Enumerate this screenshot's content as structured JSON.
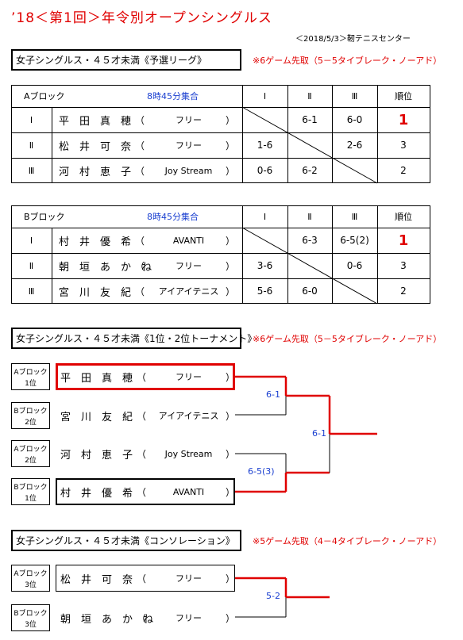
{
  "title": "’18＜第1回＞年令別オープンシングルス",
  "venue": "＜2018/5/3＞靭テニスセンター",
  "paren": [
    "（",
    "）"
  ],
  "league": {
    "heading": "女子シングルス・４５才未満《予選リーグ》",
    "note": "※6ゲーム先取（5－5タイブレーク・ノーアド）",
    "tables": [
      {
        "block": "Aブロック",
        "time": "8時45分集合",
        "columns": [
          "Ⅰ",
          "Ⅱ",
          "Ⅲ",
          "順位"
        ],
        "rows": [
          {
            "no": "Ⅰ",
            "name": "平　田　真　穂",
            "club": "フリー",
            "scores": [
              null,
              "6-1",
              "6-0"
            ],
            "rank": 1
          },
          {
            "no": "Ⅱ",
            "name": "松　井　可　奈",
            "club": "フリー",
            "scores": [
              "1-6",
              null,
              "2-6"
            ],
            "rank": 3
          },
          {
            "no": "Ⅲ",
            "name": "河　村　恵　子",
            "club": "Joy Stream",
            "scores": [
              "0-6",
              "6-2",
              null
            ],
            "rank": 2
          }
        ]
      },
      {
        "block": "Bブロック",
        "time": "8時45分集合",
        "columns": [
          "Ⅰ",
          "Ⅱ",
          "Ⅲ",
          "順位"
        ],
        "rows": [
          {
            "no": "Ⅰ",
            "name": "村　井　優　希",
            "club": "AVANTI",
            "scores": [
              null,
              "6-3",
              "6-5(2)"
            ],
            "rank": 1
          },
          {
            "no": "Ⅱ",
            "name": "朝　垣　あ　か　ね",
            "club": "フリー",
            "scores": [
              "3-6",
              null,
              "0-6"
            ],
            "rank": 3
          },
          {
            "no": "Ⅲ",
            "name": "宮　川　友　紀",
            "club": "アイアイテニス",
            "scores": [
              "5-6",
              "6-0",
              null
            ],
            "rank": 2
          }
        ]
      }
    ]
  },
  "bracket": {
    "heading": "女子シングルス・４５才未満《1位・2位トーナメント》",
    "note": "※6ゲーム先取（5－5タイブレーク・ノーアド）",
    "entries": [
      {
        "block": [
          "Aブロック",
          "1位"
        ],
        "name": "平　田　真　穂",
        "club": "フリー"
      },
      {
        "block": [
          "Bブロック",
          "2位"
        ],
        "name": "宮　川　友　紀",
        "club": "アイアイテニス"
      },
      {
        "block": [
          "Aブロック",
          "2位"
        ],
        "name": "河　村　恵　子",
        "club": "Joy Stream"
      },
      {
        "block": [
          "Bブロック",
          "1位"
        ],
        "name": "村　井　優　希",
        "club": "AVANTI"
      }
    ],
    "scores": [
      "6-1",
      "6-5(3)",
      "6-1"
    ]
  },
  "consolation": {
    "heading": "女子シングルス・４５才未満《コンソレーション》",
    "note": "※5ゲーム先取（4－4タイブレーク・ノーアド）",
    "entries": [
      {
        "block": [
          "Aブロック",
          "3位"
        ],
        "name": "松　井　可　奈",
        "club": "フリー"
      },
      {
        "block": [
          "Bブロック",
          "3位"
        ],
        "name": "朝　垣　あ　か　ね",
        "club": "フリー"
      }
    ],
    "scores": [
      "5-2"
    ]
  }
}
